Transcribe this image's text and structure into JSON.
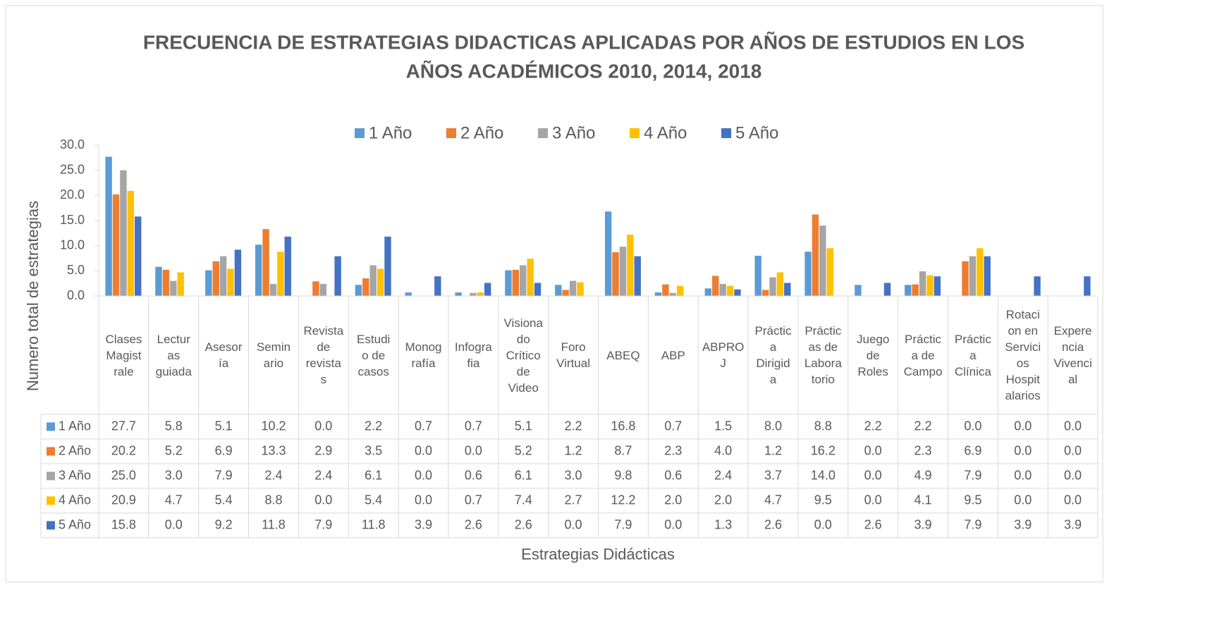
{
  "chart_data": {
    "type": "bar",
    "title": "FRECUENCIA DE ESTRATEGIAS DIDACTICAS APLICADAS POR AÑOS DE ESTUDIOS EN LOS",
    "title_line2": "AÑOS ACADÉMICOS 2010, 2014, 2018",
    "y_label": "Numero total de estrategias",
    "x_label": "Estrategias Didácticas",
    "categories": [
      "Clases\nMagist\nrale",
      "Lectur\nas\nguiada",
      "Asesor\nía",
      "Semin\nario",
      "Revista\nde\nrevista\ns",
      "Estudi\no de\ncasos",
      "Monog\nrafía",
      "Infogra\nfia",
      "Visiona\ndo\nCrítico\nde\nVideo",
      "Foro\nVirtual",
      "ABEQ",
      "ABP",
      "ABPRO\nJ",
      "Práctic\na\nDirigid\na",
      "Práctic\nas de\nLabora\ntorio",
      "Juego\nde\nRoles",
      "Práctic\na de\nCampo",
      "Práctic\na\nClínica",
      "Rotaci\non en\nServici\nos\nHospit\nalarios",
      "Expere\nncia\nVivenci\nal"
    ],
    "series": [
      {
        "name": "1 Año",
        "color": "#5b9bd5",
        "values": [
          27.7,
          5.8,
          5.1,
          10.2,
          0.0,
          2.2,
          0.7,
          0.7,
          5.1,
          2.2,
          16.8,
          0.7,
          1.5,
          8.0,
          8.8,
          2.2,
          2.2,
          0.0,
          0.0,
          0.0
        ],
        "value_labels": [
          "27.7",
          "5.8",
          "5.1",
          "10.2",
          "0.0",
          "2.2",
          "0.7",
          "0.7",
          "5.1",
          "2.2",
          "16.8",
          "0.7",
          "1.5",
          "8.0",
          "8.8",
          "2.2",
          "2.2",
          "0.0",
          "0.0",
          "0.0"
        ]
      },
      {
        "name": "2 Año",
        "color": "#ed7d31",
        "values": [
          20.2,
          5.2,
          6.9,
          13.3,
          2.9,
          3.5,
          0.0,
          0.0,
          5.2,
          1.2,
          8.7,
          2.3,
          4.0,
          1.2,
          16.2,
          0.0,
          2.3,
          6.9,
          0.0,
          0.0
        ],
        "value_labels": [
          "20.2",
          "5.2",
          "6.9",
          "13.3",
          "2.9",
          "3.5",
          "0.0",
          "0.0",
          "5.2",
          "1.2",
          "8.7",
          "2.3",
          "4.0",
          "1.2",
          "16.2",
          "0.0",
          "2.3",
          "6.9",
          "0.0",
          "0.0"
        ]
      },
      {
        "name": "3 Año",
        "color": "#a5a5a5",
        "values": [
          25.0,
          3.0,
          7.9,
          2.4,
          2.4,
          6.1,
          0.0,
          0.6,
          6.1,
          3.0,
          9.8,
          0.6,
          2.4,
          3.7,
          14.0,
          0.0,
          4.9,
          7.9,
          0.0,
          0.0
        ],
        "value_labels": [
          "25.0",
          "3.0",
          "7.9",
          "2.4",
          "2.4",
          "6.1",
          "0.0",
          "0.6",
          "6.1",
          "3.0",
          "9.8",
          "0.6",
          "2.4",
          "3.7",
          "14.0",
          "0.0",
          "4.9",
          "7.9",
          "0.0",
          "0.0"
        ]
      },
      {
        "name": "4 Año",
        "color": "#ffc000",
        "values": [
          20.9,
          4.7,
          5.4,
          8.8,
          0.0,
          5.4,
          0.0,
          0.7,
          7.4,
          2.7,
          12.2,
          2.0,
          2.0,
          4.7,
          9.5,
          0.0,
          4.1,
          9.5,
          0.0,
          0.0
        ],
        "value_labels": [
          "20.9",
          "4.7",
          "5.4",
          "8.8",
          "0.0",
          "5.4",
          "0.0",
          "0.7",
          "7.4",
          "2.7",
          "12.2",
          "2.0",
          "2.0",
          "4.7",
          "9.5",
          "0.0",
          "4.1",
          "9.5",
          "0.0",
          "0.0"
        ]
      },
      {
        "name": "5 Año",
        "color": "#4472c4",
        "values": [
          15.8,
          0.0,
          9.2,
          11.8,
          7.9,
          11.8,
          3.9,
          2.6,
          2.6,
          0.0,
          7.9,
          0.0,
          1.3,
          2.6,
          0.0,
          2.6,
          3.9,
          7.9,
          3.9,
          3.9
        ],
        "value_labels": [
          "15.8",
          "0.0",
          "9.2",
          "11.8",
          "7.9",
          "11.8",
          "3.9",
          "2.6",
          "2.6",
          "0.0",
          "7.9",
          "0.0",
          "1.3",
          "2.6",
          "0.0",
          "2.6",
          "3.9",
          "7.9",
          "3.9",
          "3.9"
        ]
      }
    ],
    "ylim": [
      0,
      30
    ],
    "yticks": [
      {
        "value": 0,
        "label": "0.0"
      },
      {
        "value": 5,
        "label": "5.0"
      },
      {
        "value": 10,
        "label": "10.0"
      },
      {
        "value": 15,
        "label": "15.0"
      },
      {
        "value": 20,
        "label": "20.0"
      },
      {
        "value": 25,
        "label": "25.0"
      },
      {
        "value": 30,
        "label": "30.0"
      }
    ],
    "legend": "top"
  }
}
